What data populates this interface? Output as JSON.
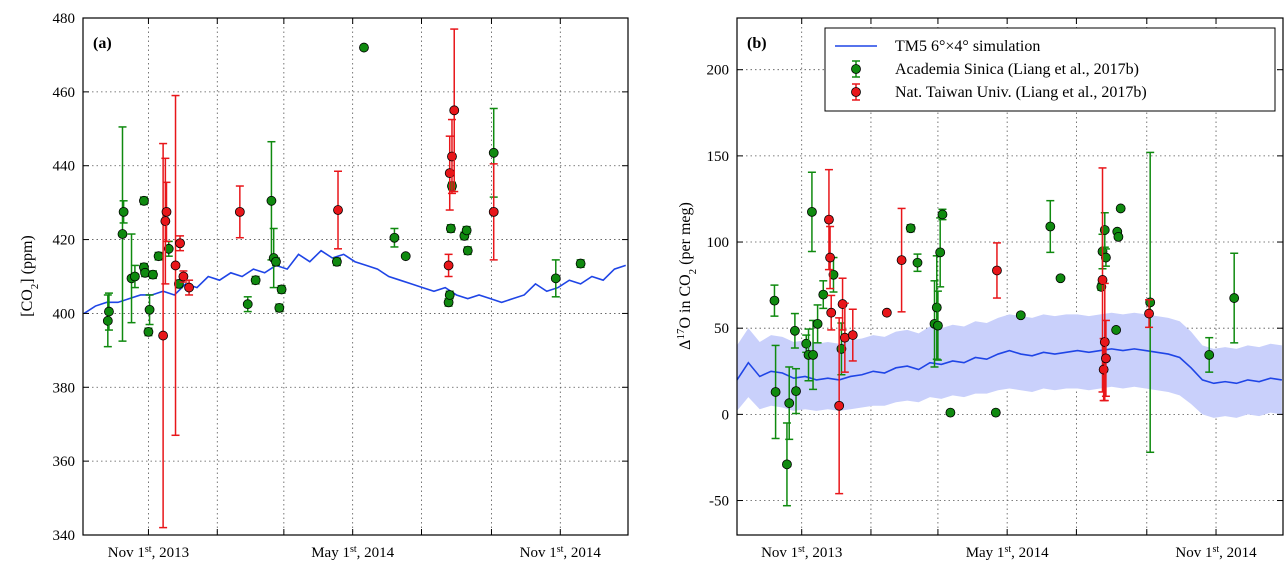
{
  "chart_data": [
    {
      "type": "scatter",
      "panel_label": "(a)",
      "y_label": [
        "[CO",
        "2",
        "] (ppm)"
      ],
      "xlim": [
        "2013-09-04",
        "2014-12-31"
      ],
      "xticks": [
        {
          "value": "2013-11-01",
          "label": [
            "Nov 1",
            "st",
            ", 2013"
          ]
        },
        {
          "value": "2014-01-01",
          "label": null
        },
        {
          "value": "2014-03-01",
          "label": null
        },
        {
          "value": "2014-05-01",
          "label": [
            "May 1",
            "st",
            ", 2014"
          ]
        },
        {
          "value": "2014-07-01",
          "label": null
        },
        {
          "value": "2014-09-01",
          "label": null
        },
        {
          "value": "2014-11-01",
          "label": [
            "Nov 1",
            "st",
            ", 2014"
          ]
        }
      ],
      "ylim": [
        340,
        480
      ],
      "yticks": [
        340,
        360,
        380,
        400,
        420,
        440,
        460,
        480
      ],
      "grid": true,
      "series": [
        {
          "type": "line",
          "color": "#1f45e6",
          "x": [
            "2013-09-05",
            "2013-09-15",
            "2013-09-25",
            "2013-10-05",
            "2013-10-15",
            "2013-10-25",
            "2013-11-04",
            "2013-11-14",
            "2013-11-24",
            "2013-12-04",
            "2013-12-14",
            "2013-12-24",
            "2014-01-03",
            "2014-01-13",
            "2014-01-23",
            "2014-02-02",
            "2014-02-12",
            "2014-02-22",
            "2014-03-04",
            "2014-03-14",
            "2014-03-24",
            "2014-04-03",
            "2014-04-13",
            "2014-04-23",
            "2014-05-03",
            "2014-05-13",
            "2014-05-23",
            "2014-06-02",
            "2014-06-12",
            "2014-06-22",
            "2014-07-02",
            "2014-07-12",
            "2014-07-22",
            "2014-08-01",
            "2014-08-11",
            "2014-08-21",
            "2014-08-31",
            "2014-09-10",
            "2014-09-20",
            "2014-09-30",
            "2014-10-10",
            "2014-10-20",
            "2014-10-30",
            "2014-11-09",
            "2014-11-19",
            "2014-11-29",
            "2014-12-09",
            "2014-12-19",
            "2014-12-29"
          ],
          "values": [
            400,
            402,
            403,
            403,
            404,
            405,
            405,
            406,
            405,
            408,
            407,
            410,
            409,
            411,
            410,
            412,
            411,
            413,
            412,
            416,
            414,
            417,
            415,
            416,
            414,
            413,
            412,
            410,
            409,
            408,
            407,
            406,
            407,
            405,
            404,
            405,
            404,
            403,
            404,
            405,
            408,
            406,
            407,
            409,
            408,
            410,
            409,
            412,
            413
          ]
        },
        {
          "type": "errorbar",
          "color": "#0f8a0f",
          "x": [
            "2013-09-26",
            "2013-09-27",
            "2013-10-09",
            "2013-10-10",
            "2013-10-17",
            "2013-10-20",
            "2013-10-28",
            "2013-10-28",
            "2013-10-29",
            "2013-11-01",
            "2013-11-02",
            "2013-11-05",
            "2013-11-10",
            "2013-11-19",
            "2013-11-28",
            "2014-01-28",
            "2014-02-04",
            "2014-02-18",
            "2014-02-20",
            "2014-02-22",
            "2014-02-25",
            "2014-02-27",
            "2014-04-17",
            "2014-05-11",
            "2014-06-07",
            "2014-06-17",
            "2014-07-25",
            "2014-07-26",
            "2014-07-27",
            "2014-07-28",
            "2014-08-08",
            "2014-08-10",
            "2014-08-11",
            "2014-09-03",
            "2014-10-28",
            "2014-11-19"
          ],
          "values": [
            398,
            400.5,
            421.5,
            427.5,
            409.5,
            410,
            430.5,
            412.5,
            411,
            395,
            401,
            410.5,
            415.5,
            417.5,
            408,
            402.5,
            409,
            430.5,
            415,
            414,
            401.5,
            406.5,
            414,
            472,
            420.5,
            415.5,
            403,
            405,
            423,
            434.5,
            421,
            422.5,
            417,
            443.5,
            409.5,
            413.5
          ],
          "errors": [
            7,
            5,
            29,
            3,
            12,
            3,
            1,
            1,
            1,
            1,
            4,
            1,
            1,
            2,
            1,
            2,
            1,
            16,
            8,
            1,
            1,
            1,
            1,
            0.5,
            2.5,
            0.5,
            1,
            1,
            1,
            1,
            1,
            1,
            1,
            12,
            5,
            1
          ]
        },
        {
          "type": "errorbar",
          "color": "#e8161a",
          "x": [
            "2013-11-14",
            "2013-11-16",
            "2013-11-17",
            "2013-11-25",
            "2013-11-29",
            "2013-12-02",
            "2013-12-07",
            "2014-01-21",
            "2014-04-18",
            "2014-07-25",
            "2014-07-26",
            "2014-07-28",
            "2014-07-30",
            "2014-09-03"
          ],
          "values": [
            394,
            425,
            427.5,
            413,
            419,
            410,
            407,
            427.5,
            428,
            413,
            438,
            442.5,
            455,
            427.5
          ],
          "errors": [
            52,
            17,
            8,
            46,
            2,
            1.5,
            2,
            7,
            10.5,
            3,
            10,
            10,
            22,
            13
          ]
        }
      ]
    },
    {
      "type": "scatter",
      "panel_label": "(b)",
      "y_label": [
        "Δ",
        "17",
        "O in CO",
        "2",
        " (per meg)"
      ],
      "xlim": [
        "2013-09-05",
        "2014-12-30"
      ],
      "xticks": [
        {
          "value": "2013-11-01",
          "label": [
            "Nov 1",
            "st",
            ", 2013"
          ]
        },
        {
          "value": "2014-01-01",
          "label": null
        },
        {
          "value": "2014-03-01",
          "label": null
        },
        {
          "value": "2014-05-01",
          "label": [
            "May 1",
            "st",
            ", 2014"
          ]
        },
        {
          "value": "2014-07-01",
          "label": null
        },
        {
          "value": "2014-09-01",
          "label": null
        },
        {
          "value": "2014-11-01",
          "label": [
            "Nov 1",
            "st",
            ", 2014"
          ]
        }
      ],
      "ylim": [
        -70,
        230
      ],
      "yticks": [
        -50,
        0,
        50,
        100,
        150,
        200
      ],
      "grid": true,
      "legend": "upper right",
      "series": [
        {
          "type": "line",
          "name": "TM5 6°×4° simulation",
          "color": "#1f45e6",
          "band_color": "#c9d0fb",
          "x": [
            "2013-09-05",
            "2013-09-15",
            "2013-09-25",
            "2013-10-05",
            "2013-10-15",
            "2013-10-25",
            "2013-11-04",
            "2013-11-14",
            "2013-11-24",
            "2013-12-04",
            "2013-12-14",
            "2013-12-24",
            "2014-01-03",
            "2014-01-13",
            "2014-01-23",
            "2014-02-02",
            "2014-02-12",
            "2014-02-22",
            "2014-03-04",
            "2014-03-14",
            "2014-03-24",
            "2014-04-03",
            "2014-04-13",
            "2014-04-23",
            "2014-05-03",
            "2014-05-13",
            "2014-05-23",
            "2014-06-02",
            "2014-06-12",
            "2014-06-22",
            "2014-07-02",
            "2014-07-12",
            "2014-07-22",
            "2014-08-01",
            "2014-08-11",
            "2014-08-21",
            "2014-08-31",
            "2014-09-10",
            "2014-09-20",
            "2014-09-30",
            "2014-10-10",
            "2014-10-20",
            "2014-10-30",
            "2014-11-09",
            "2014-11-19",
            "2014-11-29",
            "2014-12-09",
            "2014-12-19",
            "2014-12-29"
          ],
          "values": [
            20,
            30,
            22,
            25,
            24,
            21,
            22,
            20,
            21,
            20,
            22,
            23,
            25,
            24,
            27,
            28,
            26,
            30,
            29,
            31,
            30,
            33,
            32,
            35,
            37,
            35,
            34,
            36,
            35,
            36,
            37,
            36,
            37,
            38,
            37,
            38,
            37,
            36,
            35,
            33,
            27,
            20,
            18,
            19,
            18,
            20,
            19,
            21,
            20
          ],
          "lower": [
            2,
            10,
            3,
            5,
            4,
            2,
            3,
            2,
            3,
            2,
            3,
            4,
            5,
            5,
            7,
            8,
            7,
            10,
            9,
            11,
            10,
            12,
            12,
            14,
            15,
            14,
            13,
            15,
            14,
            15,
            15,
            14,
            15,
            16,
            15,
            16,
            15,
            14,
            13,
            11,
            6,
            0,
            -2,
            -1,
            -2,
            0,
            -1,
            1,
            0
          ],
          "upper": [
            40,
            50,
            42,
            46,
            45,
            42,
            43,
            41,
            42,
            41,
            43,
            44,
            46,
            45,
            48,
            49,
            47,
            51,
            50,
            52,
            51,
            54,
            53,
            56,
            58,
            57,
            56,
            58,
            57,
            58,
            58,
            57,
            58,
            59,
            58,
            59,
            58,
            57,
            56,
            54,
            48,
            40,
            38,
            39,
            38,
            40,
            39,
            41,
            40
          ]
        },
        {
          "type": "errorbar",
          "name": "Academia Sinica (Liang et al., 2017b)",
          "color": "#0f8a0f",
          "x": [
            "2013-10-08",
            "2013-10-09",
            "2013-10-19",
            "2013-10-21",
            "2013-10-26",
            "2013-10-27",
            "2013-11-05",
            "2013-11-07",
            "2013-11-10",
            "2013-11-11",
            "2013-11-15",
            "2013-11-20",
            "2013-11-29",
            "2013-12-06",
            "2014-02-05",
            "2014-02-11",
            "2014-02-26",
            "2014-02-28",
            "2014-03-01",
            "2014-03-03",
            "2014-03-05",
            "2014-03-12",
            "2014-04-21",
            "2014-05-13",
            "2014-06-08",
            "2014-06-17",
            "2014-07-23",
            "2014-07-24",
            "2014-07-26",
            "2014-07-27",
            "2014-08-05",
            "2014-08-06",
            "2014-08-07",
            "2014-08-09",
            "2014-09-04",
            "2014-10-26",
            "2014-11-17"
          ],
          "values": [
            66,
            13,
            -29,
            6.5,
            48.5,
            13.5,
            41,
            34.5,
            117.5,
            34.5,
            52.5,
            69.5,
            81,
            38,
            108,
            88,
            52.5,
            62,
            51.5,
            94,
            116,
            1,
            1,
            57.5,
            109,
            79,
            74,
            94.5,
            107,
            91,
            49,
            106,
            103,
            119.5,
            65,
            34.5,
            67.5
          ],
          "errors": [
            9,
            27,
            24,
            21,
            10,
            13,
            5,
            15,
            23,
            20,
            11,
            8,
            10,
            15,
            2,
            5,
            25,
            30,
            20,
            20,
            3,
            1,
            1,
            1,
            15,
            1,
            2,
            10,
            10,
            5,
            1,
            1,
            1,
            1,
            87,
            10,
            26
          ]
        },
        {
          "type": "errorbar",
          "name": "Nat. Taiwan Univ. (Liang et al., 2017b)",
          "color": "#e8161a",
          "x": [
            "2013-11-25",
            "2013-11-26",
            "2013-11-27",
            "2013-12-04",
            "2013-12-07",
            "2013-12-09",
            "2013-12-16",
            "2014-01-15",
            "2014-01-28",
            "2014-04-22",
            "2014-07-24",
            "2014-07-25",
            "2014-07-26",
            "2014-07-27",
            "2014-09-03"
          ],
          "values": [
            113,
            91,
            59,
            5,
            64,
            44.5,
            46,
            59,
            89.5,
            83.5,
            78,
            26,
            42,
            32.5,
            58.5
          ],
          "errors": [
            29,
            18,
            10,
            51,
            15,
            20,
            15,
            1,
            30,
            16,
            65,
            18,
            34,
            22,
            8
          ]
        }
      ]
    }
  ]
}
